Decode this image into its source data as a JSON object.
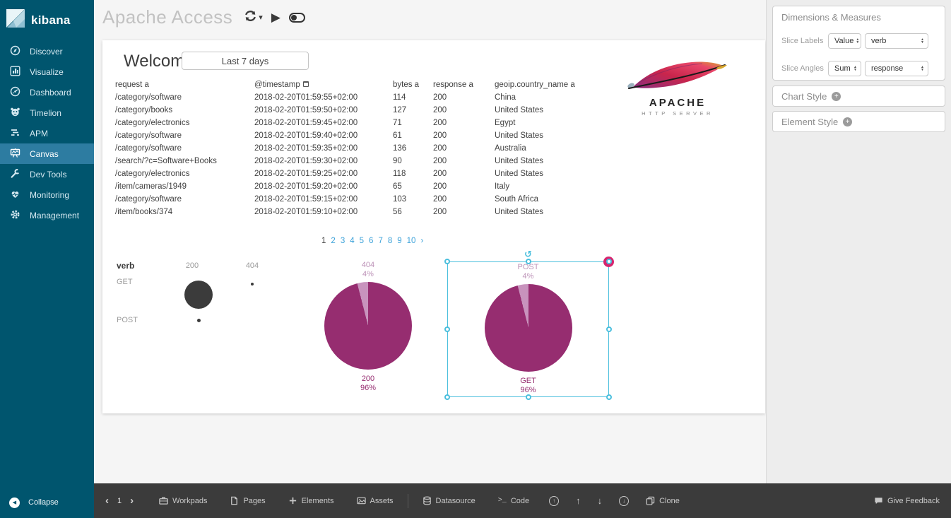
{
  "sidebar": {
    "logo": "kibana",
    "items": [
      {
        "label": "Discover",
        "icon": "discover-icon",
        "active": false
      },
      {
        "label": "Visualize",
        "icon": "visualize-icon",
        "active": false
      },
      {
        "label": "Dashboard",
        "icon": "dashboard-icon",
        "active": false
      },
      {
        "label": "Timelion",
        "icon": "timelion-icon",
        "active": false
      },
      {
        "label": "APM",
        "icon": "apm-icon",
        "active": false
      },
      {
        "label": "Canvas",
        "icon": "canvas-icon",
        "active": true
      },
      {
        "label": "Dev Tools",
        "icon": "devtools-icon",
        "active": false
      },
      {
        "label": "Monitoring",
        "icon": "monitoring-icon",
        "active": false
      },
      {
        "label": "Management",
        "icon": "management-icon",
        "active": false
      }
    ],
    "collapse": "Collapse"
  },
  "header": {
    "title": "Apache Access"
  },
  "page": {
    "welcome": "Welcome!",
    "time_filter": "Last 7 days",
    "table": {
      "columns": [
        "request a",
        "@timestamp",
        "bytes a",
        "response a",
        "geoip.country_name a"
      ],
      "rows": [
        {
          "request": "/category/software",
          "timestamp": "2018-02-20T01:59:55+02:00",
          "bytes": "114",
          "response": "200",
          "country": "China"
        },
        {
          "request": "/category/books",
          "timestamp": "2018-02-20T01:59:50+02:00",
          "bytes": "127",
          "response": "200",
          "country": "United States"
        },
        {
          "request": "/category/electronics",
          "timestamp": "2018-02-20T01:59:45+02:00",
          "bytes": "71",
          "response": "200",
          "country": "Egypt"
        },
        {
          "request": "/category/software",
          "timestamp": "2018-02-20T01:59:40+02:00",
          "bytes": "61",
          "response": "200",
          "country": "United States"
        },
        {
          "request": "/category/software",
          "timestamp": "2018-02-20T01:59:35+02:00",
          "bytes": "136",
          "response": "200",
          "country": "Australia"
        },
        {
          "request": "/search/?c=Software+Books",
          "timestamp": "2018-02-20T01:59:30+02:00",
          "bytes": "90",
          "response": "200",
          "country": "United States"
        },
        {
          "request": "/category/electronics",
          "timestamp": "2018-02-20T01:59:25+02:00",
          "bytes": "118",
          "response": "200",
          "country": "United States"
        },
        {
          "request": "/item/cameras/1949",
          "timestamp": "2018-02-20T01:59:20+02:00",
          "bytes": "65",
          "response": "200",
          "country": "Italy"
        },
        {
          "request": "/category/software",
          "timestamp": "2018-02-20T01:59:15+02:00",
          "bytes": "103",
          "response": "200",
          "country": "South Africa"
        },
        {
          "request": "/item/books/374",
          "timestamp": "2018-02-20T01:59:10+02:00",
          "bytes": "56",
          "response": "200",
          "country": "United States"
        }
      ]
    },
    "pagination": {
      "pages": [
        {
          "n": "1",
          "current": true
        },
        {
          "n": "2"
        },
        {
          "n": "3"
        },
        {
          "n": "4"
        },
        {
          "n": "5"
        },
        {
          "n": "6"
        },
        {
          "n": "7"
        },
        {
          "n": "8"
        },
        {
          "n": "9"
        },
        {
          "n": "10"
        }
      ],
      "next": "›"
    }
  },
  "charts": {
    "colors": {
      "main": "#962d70",
      "minor": "#c893bd",
      "dot": "#3b3b3b",
      "selection": "#4bbfdd"
    },
    "bubble": {
      "title": "verb",
      "columns": [
        "200",
        "404"
      ],
      "rows": [
        "GET",
        "POST"
      ],
      "cells": [
        {
          "row": "GET",
          "col": "200",
          "diameter": 40
        },
        {
          "row": "GET",
          "col": "404",
          "diameter": 4
        },
        {
          "row": "POST",
          "col": "200",
          "diameter": 5
        }
      ]
    },
    "pie_response": {
      "minor_label": "404",
      "minor_pct": "4%",
      "major_label": "200",
      "major_pct": "96%",
      "minor_value": 4,
      "major_value": 96
    },
    "pie_verb": {
      "minor_label": "POST",
      "minor_pct": "4%",
      "major_label": "GET",
      "major_pct": "96%",
      "minor_value": 4,
      "major_value": 96,
      "selected": true
    }
  },
  "apache_logo": {
    "line1": "APACHE",
    "line2": "HTTP SERVER"
  },
  "right_panel": {
    "dimensions_title": "Dimensions & Measures",
    "slice_labels": {
      "label": "Slice Labels",
      "fn": "Value",
      "field": "verb"
    },
    "slice_angles": {
      "label": "Slice Angles",
      "fn": "Sum",
      "field": "response"
    },
    "chart_style": "Chart Style",
    "element_style": "Element Style"
  },
  "bottom_bar": {
    "page_number": "1",
    "workpads": "Workpads",
    "pages": "Pages",
    "elements": "Elements",
    "assets": "Assets",
    "datasource": "Datasource",
    "code": "Code",
    "clone": "Clone",
    "feedback": "Give Feedback"
  }
}
